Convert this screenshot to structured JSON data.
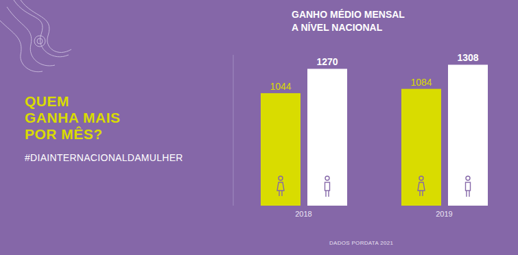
{
  "chart_data": {
    "type": "bar",
    "title": [
      "GANHO MÉDIO MENSAL",
      "A NÍVEL NACIONAL"
    ],
    "categories": [
      "2018",
      "2019"
    ],
    "series": [
      {
        "color": "#d9dc00",
        "values": [
          1044,
          1084
        ]
      },
      {
        "color": "#ffffff",
        "values": [
          1270,
          1308
        ]
      }
    ],
    "ylim": [
      0,
      1400
    ],
    "data_labels": true,
    "tick_labels": "x",
    "annotations": {
      "heading": [
        "QUEM",
        "GANHA MAIS",
        "POR MÊS?"
      ],
      "hashtag": "#DIAINTERNACIONALDAMULHER",
      "source": "DADOS PORDATA 2021"
    }
  }
}
